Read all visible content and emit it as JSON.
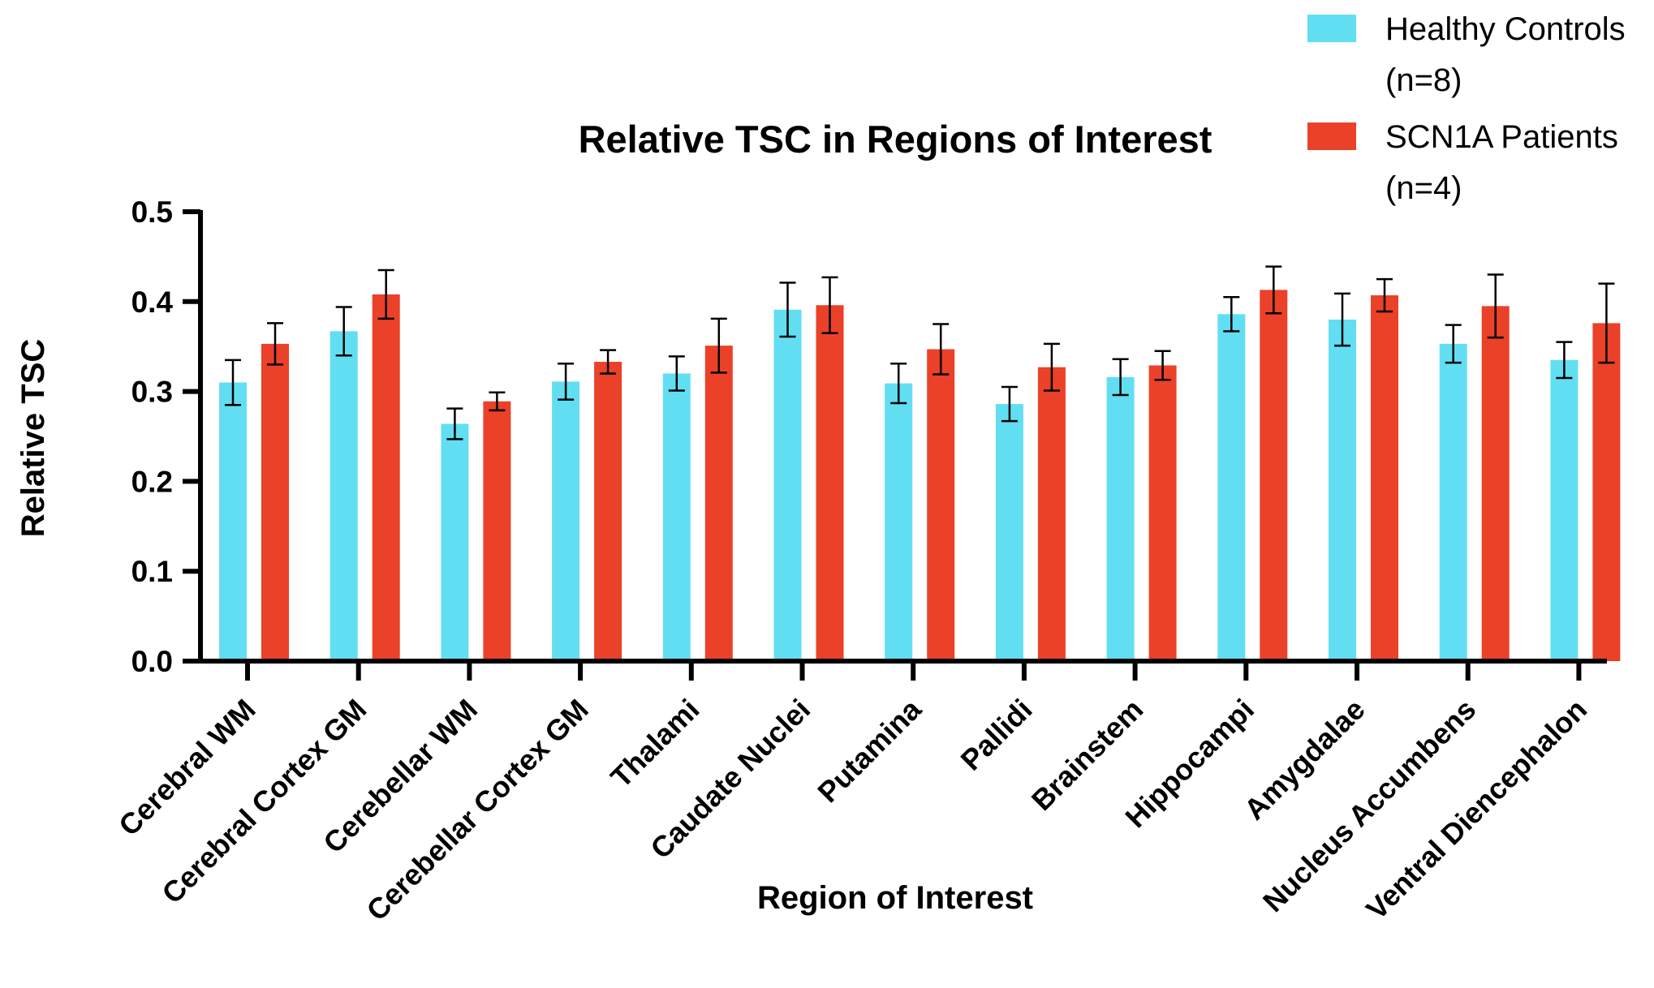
{
  "chart_data": {
    "type": "bar",
    "title": "Relative TSC in Regions of Interest",
    "xlabel": "Region of Interest",
    "ylabel": "Relative TSC",
    "ylim": [
      0,
      0.5
    ],
    "yticks": [
      "0.0",
      "0.1",
      "0.2",
      "0.3",
      "0.4",
      "0.5"
    ],
    "grid": false,
    "legend_position": "top-right",
    "categories": [
      "Cerebral WM",
      "Cerebral Cortex GM",
      "Cerebellar WM",
      "Cerebellar Cortex GM",
      "Thalami",
      "Caudate Nuclei",
      "Putamina",
      "Pallidi",
      "Brainstem",
      "Hippocampi",
      "Amygdalae",
      "Nucleus Accumbens",
      "Ventral Diencephalon"
    ],
    "series": [
      {
        "name": "Healthy Controls",
        "legend_lines": [
          "Healthy Controls",
          "(n=8)"
        ],
        "color": "#62DEF3",
        "values": [
          0.31,
          0.367,
          0.264,
          0.311,
          0.32,
          0.391,
          0.309,
          0.286,
          0.316,
          0.386,
          0.38,
          0.353,
          0.335
        ],
        "errors": [
          0.025,
          0.027,
          0.017,
          0.02,
          0.019,
          0.03,
          0.022,
          0.019,
          0.02,
          0.019,
          0.029,
          0.021,
          0.02
        ]
      },
      {
        "name": "SCN1A Patients",
        "legend_lines": [
          "SCN1A Patients",
          "(n=4)"
        ],
        "color": "#EA4128",
        "values": [
          0.353,
          0.408,
          0.289,
          0.333,
          0.351,
          0.396,
          0.347,
          0.327,
          0.329,
          0.413,
          0.407,
          0.395,
          0.376
        ],
        "errors": [
          0.023,
          0.027,
          0.01,
          0.013,
          0.03,
          0.031,
          0.028,
          0.026,
          0.016,
          0.026,
          0.018,
          0.035,
          0.044
        ]
      }
    ]
  }
}
